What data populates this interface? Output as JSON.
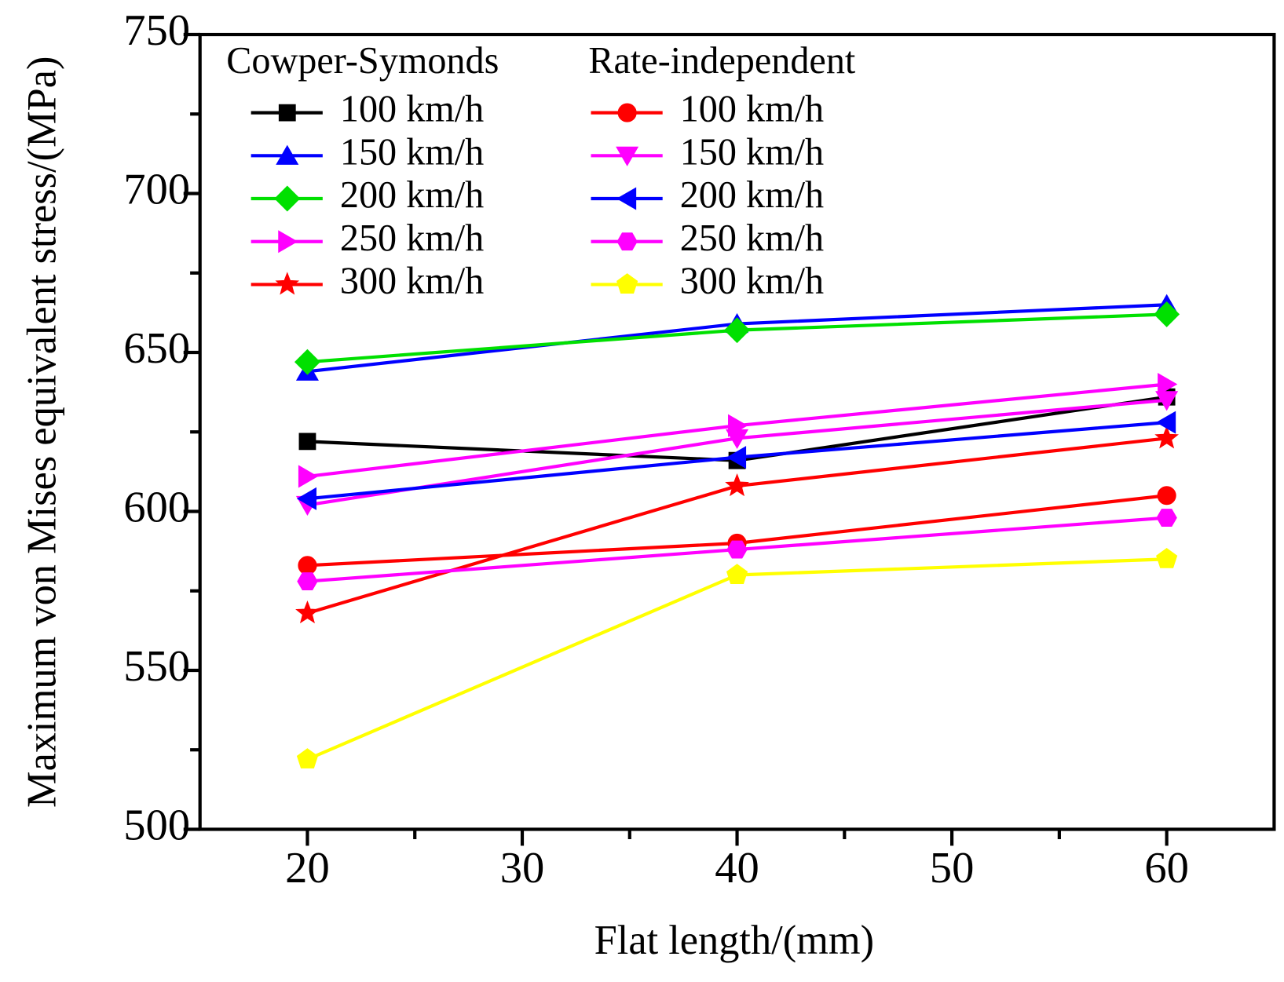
{
  "chart_data": {
    "type": "line",
    "x_label": "Flat length/(mm)",
    "y_label": "Maximum von Mises equivalent stress/(MPa)",
    "legend_groups": [
      "Cowper-Symonds",
      "Rate-independent"
    ],
    "x": [
      20,
      40,
      60
    ],
    "xlim": [
      15,
      65
    ],
    "xticks": [
      20,
      30,
      40,
      50,
      60
    ],
    "xminor": [
      25,
      35,
      45,
      55
    ],
    "ylim": [
      500,
      750
    ],
    "yticks": [
      500,
      550,
      600,
      650,
      700,
      750
    ],
    "yminor": [
      525,
      575,
      625,
      675,
      725
    ],
    "series": [
      {
        "name": "100 km/h",
        "color": "#000000",
        "marker": "square",
        "values": [
          622,
          616,
          636
        ]
      },
      {
        "name": "150 km/h",
        "color": "#0000ff",
        "marker": "triangle-up",
        "values": [
          644,
          659,
          665
        ]
      },
      {
        "name": "200 km/h",
        "color": "#00e000",
        "marker": "diamond",
        "values": [
          647,
          657,
          662
        ]
      },
      {
        "name": "250 km/h",
        "color": "#ff00ff",
        "marker": "triangle-right",
        "values": [
          611,
          627,
          640
        ]
      },
      {
        "name": "300 km/h",
        "color": "#ff0000",
        "marker": "star",
        "values": [
          568,
          608,
          623
        ]
      },
      {
        "name": "100 km/h",
        "color": "#ff0000",
        "marker": "circle",
        "values": [
          583,
          590,
          605
        ]
      },
      {
        "name": "150 km/h",
        "color": "#ff00ff",
        "marker": "triangle-down",
        "values": [
          602,
          623,
          635
        ]
      },
      {
        "name": "200 km/h",
        "color": "#0000ff",
        "marker": "triangle-left",
        "values": [
          604,
          617,
          628
        ]
      },
      {
        "name": "250 km/h",
        "color": "#ff00ff",
        "marker": "hexagon",
        "values": [
          578,
          588,
          598
        ]
      },
      {
        "name": "300 km/h",
        "color": "#ffff00",
        "marker": "pentagon",
        "values": [
          522,
          580,
          585
        ]
      }
    ]
  }
}
